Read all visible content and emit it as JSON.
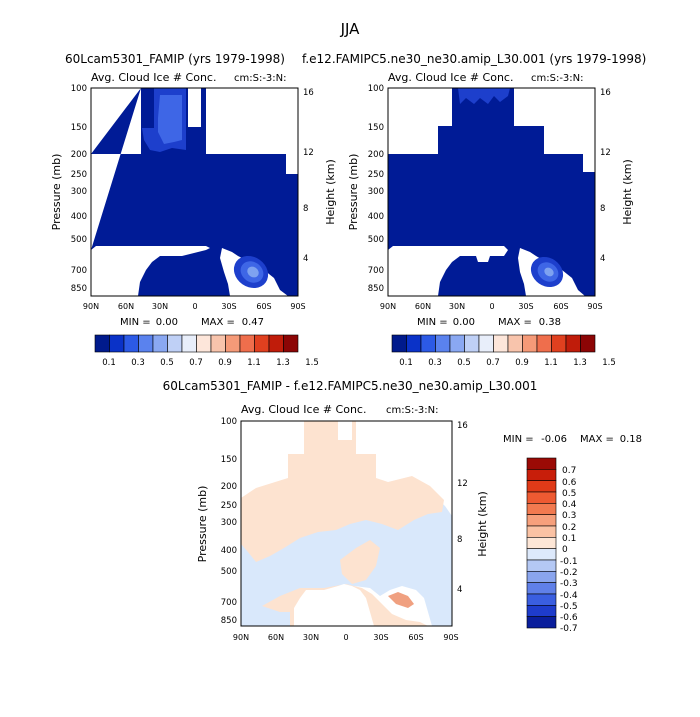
{
  "page_title": "JJA",
  "chart_data": [
    {
      "type": "heatmap",
      "title": "60Lcam5301_FAMIP (yrs 1979-1998)",
      "variable": "Avg. Cloud Ice # Conc.",
      "units": "cm:S:-3:N:",
      "ylabel": "Pressure (mb)",
      "ylabel_right": "Height (km)",
      "x_ticks": [
        "90N",
        "60N",
        "30N",
        "0",
        "30S",
        "60S",
        "90S"
      ],
      "y_ticks": [
        "100",
        "150",
        "200",
        "250",
        "300",
        "400",
        "500",
        "700",
        "850"
      ],
      "height_ticks": [
        "16",
        "12",
        "8",
        "4"
      ],
      "stats": {
        "min_label": "MIN =",
        "min": "0.00",
        "max_label": "MAX =",
        "max": "0.47"
      }
    },
    {
      "type": "heatmap",
      "title": "f.e12.FAMIPC5.ne30_ne30.amip_L30.001 (yrs 1979-1998)",
      "variable": "Avg. Cloud Ice # Conc.",
      "units": "cm:S:-3:N:",
      "ylabel": "Pressure (mb)",
      "ylabel_right": "Height (km)",
      "x_ticks": [
        "90N",
        "60N",
        "30N",
        "0",
        "30S",
        "60S",
        "90S"
      ],
      "y_ticks": [
        "100",
        "150",
        "200",
        "250",
        "300",
        "400",
        "500",
        "700",
        "850"
      ],
      "height_ticks": [
        "16",
        "12",
        "8",
        "4"
      ],
      "stats": {
        "min_label": "MIN =",
        "min": "0.00",
        "max_label": "MAX =",
        "max": "0.38"
      }
    },
    {
      "type": "heatmap",
      "title": "60Lcam5301_FAMIP - f.e12.FAMIPC5.ne30_ne30.amip_L30.001",
      "variable": "Avg. Cloud Ice # Conc.",
      "units": "cm:S:-3:N:",
      "ylabel": "Pressure (mb)",
      "ylabel_right": "Height (km)",
      "x_ticks": [
        "90N",
        "60N",
        "30N",
        "0",
        "30S",
        "60S",
        "90S"
      ],
      "y_ticks": [
        "100",
        "150",
        "200",
        "250",
        "300",
        "400",
        "500",
        "700",
        "850"
      ],
      "height_ticks": [
        "16",
        "12",
        "8",
        "4"
      ],
      "stats": {
        "min_label": "MIN =",
        "min": "-0.06",
        "max_label": "MAX =",
        "max": "0.18"
      }
    }
  ],
  "colorbar_abs": {
    "labels": [
      "0.1",
      "0.3",
      "0.5",
      "0.7",
      "0.9",
      "1.1",
      "1.3",
      "1.5"
    ],
    "colors": [
      "#001a8c",
      "#0a32c8",
      "#2c5ae6",
      "#5a82ee",
      "#8aa8f2",
      "#bfd0f6",
      "#e8eefa",
      "#fde6da",
      "#f8c4ac",
      "#f59a78",
      "#ef6e4c",
      "#e0401f",
      "#c01c0a",
      "#8c0505"
    ]
  },
  "colorbar_diff": {
    "labels": [
      "0.7",
      "0.6",
      "0.5",
      "0.4",
      "0.3",
      "0.2",
      "0.1",
      "0",
      "-0.1",
      "-0.2",
      "-0.3",
      "-0.4",
      "-0.5",
      "-0.6",
      "-0.7"
    ],
    "colors": [
      "#9b0a05",
      "#c81e0a",
      "#e03a18",
      "#ee5a32",
      "#f27a50",
      "#f6a07c",
      "#fac2a4",
      "#fde6d6",
      "#dde9fb",
      "#b4c8f4",
      "#8aa5ee",
      "#6080e8",
      "#3a5ee0",
      "#1e3ccc",
      "#0a1e9c"
    ]
  },
  "colors": {
    "ice_dark": "#001b96",
    "ice_mid": "#1d3fcc",
    "ice_light": "#3e66e6",
    "ice_pale": "#7ea2f0",
    "diff_pos": "#fde3d0",
    "diff_neg": "#d9e8fb",
    "diff_hot": "#f0a080"
  }
}
